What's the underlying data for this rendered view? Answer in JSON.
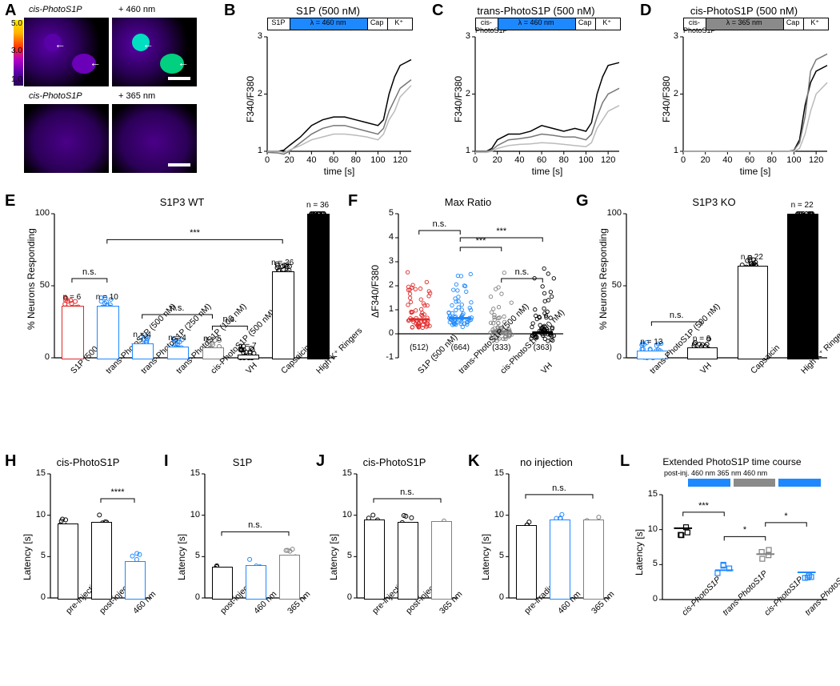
{
  "panelA": {
    "label": "A",
    "images": {
      "top_left_title": "cis-PhotoS1P",
      "top_right_title": "+ 460 nm",
      "bottom_left_title": "cis-PhotoS1P",
      "bottom_right_title": "+ 365 nm"
    },
    "colorbar": {
      "ticks": [
        "5.0",
        "3.0",
        "1.0"
      ]
    }
  },
  "panelB": {
    "label": "B",
    "title": "S1P (500 nM)",
    "chart": {
      "type": "line",
      "xlabel": "time [s]",
      "ylabel": "F340/F380",
      "xlim": [
        0,
        130
      ],
      "xticks": [
        0,
        20,
        40,
        60,
        80,
        100,
        120
      ],
      "ylim": [
        1,
        3
      ],
      "yticks": [
        1,
        2,
        3
      ],
      "series": [
        {
          "color": "#000000",
          "width": 1.5,
          "x": [
            0,
            10,
            15,
            20,
            30,
            40,
            50,
            60,
            70,
            80,
            90,
            100,
            105,
            110,
            115,
            120,
            130
          ],
          "y": [
            1.0,
            1.0,
            1.02,
            1.1,
            1.25,
            1.45,
            1.55,
            1.6,
            1.6,
            1.55,
            1.5,
            1.45,
            1.55,
            2.0,
            2.3,
            2.5,
            2.6
          ]
        },
        {
          "color": "#777777",
          "width": 1.5,
          "x": [
            0,
            10,
            15,
            20,
            30,
            40,
            50,
            60,
            70,
            80,
            90,
            100,
            105,
            110,
            115,
            120,
            130
          ],
          "y": [
            0.98,
            0.97,
            0.95,
            1.0,
            1.15,
            1.3,
            1.4,
            1.45,
            1.45,
            1.4,
            1.35,
            1.3,
            1.4,
            1.7,
            1.9,
            2.1,
            2.25
          ]
        },
        {
          "color": "#bbbbbb",
          "width": 1.5,
          "x": [
            0,
            10,
            15,
            20,
            30,
            40,
            50,
            60,
            70,
            80,
            90,
            100,
            105,
            110,
            115,
            120,
            130
          ],
          "y": [
            1.0,
            1.0,
            0.98,
            1.02,
            1.1,
            1.2,
            1.25,
            1.3,
            1.3,
            1.28,
            1.25,
            1.2,
            1.3,
            1.55,
            1.7,
            1.95,
            2.15
          ]
        }
      ],
      "protocol": [
        {
          "start": 0,
          "end": 20,
          "label": "S1P",
          "fill": "#ffffff"
        },
        {
          "start": 20,
          "end": 90,
          "label": "λ = 460 nm",
          "fill": "#1e88ff"
        },
        {
          "start": 90,
          "end": 108,
          "label": "Cap",
          "fill": "#ffffff"
        },
        {
          "start": 108,
          "end": 130,
          "label": "K⁺",
          "fill": "#ffffff"
        }
      ]
    }
  },
  "panelC": {
    "label": "C",
    "title": "trans-PhotoS1P (500 nM)",
    "chart": {
      "type": "line",
      "xlabel": "time [s]",
      "ylabel": "F340/F380",
      "xlim": [
        0,
        130
      ],
      "xticks": [
        0,
        20,
        40,
        60,
        80,
        100,
        120
      ],
      "ylim": [
        1,
        3
      ],
      "yticks": [
        1,
        2,
        3
      ],
      "series": [
        {
          "color": "#000000",
          "width": 1.5,
          "x": [
            0,
            10,
            15,
            20,
            30,
            40,
            50,
            60,
            70,
            80,
            90,
            100,
            105,
            110,
            115,
            120,
            130
          ],
          "y": [
            1.0,
            1.0,
            1.05,
            1.2,
            1.3,
            1.3,
            1.35,
            1.45,
            1.4,
            1.35,
            1.4,
            1.35,
            1.5,
            2.0,
            2.3,
            2.5,
            2.55
          ]
        },
        {
          "color": "#777777",
          "width": 1.5,
          "x": [
            0,
            10,
            15,
            20,
            30,
            40,
            50,
            60,
            70,
            80,
            90,
            100,
            105,
            110,
            115,
            120,
            130
          ],
          "y": [
            1.0,
            1.0,
            1.02,
            1.1,
            1.2,
            1.22,
            1.25,
            1.3,
            1.28,
            1.25,
            1.25,
            1.2,
            1.3,
            1.6,
            1.85,
            2.0,
            2.1
          ]
        },
        {
          "color": "#bbbbbb",
          "width": 1.5,
          "x": [
            0,
            10,
            15,
            20,
            30,
            40,
            50,
            60,
            70,
            80,
            90,
            100,
            105,
            110,
            115,
            120,
            130
          ],
          "y": [
            0.98,
            0.98,
            1.0,
            1.05,
            1.1,
            1.12,
            1.13,
            1.15,
            1.14,
            1.12,
            1.1,
            1.08,
            1.15,
            1.4,
            1.55,
            1.7,
            1.8
          ]
        }
      ],
      "protocol": [
        {
          "start": 0,
          "end": 20,
          "label": "cis-PhotoS1P",
          "fill": "#ffffff"
        },
        {
          "start": 20,
          "end": 90,
          "label": "λ = 460 nm",
          "fill": "#1e88ff"
        },
        {
          "start": 90,
          "end": 108,
          "label": "Cap",
          "fill": "#ffffff"
        },
        {
          "start": 108,
          "end": 130,
          "label": "K⁺",
          "fill": "#ffffff"
        }
      ]
    }
  },
  "panelD": {
    "label": "D",
    "title": "cis-PhotoS1P (500 nM)",
    "chart": {
      "type": "line",
      "xlabel": "time [s]",
      "ylabel": "F340/F380",
      "xlim": [
        0,
        130
      ],
      "xticks": [
        0,
        20,
        40,
        60,
        80,
        100,
        120
      ],
      "ylim": [
        1,
        3
      ],
      "yticks": [
        1,
        2,
        3
      ],
      "series": [
        {
          "color": "#000000",
          "width": 1.5,
          "x": [
            0,
            20,
            40,
            60,
            80,
            95,
            100,
            105,
            110,
            115,
            120,
            130
          ],
          "y": [
            1.0,
            1.0,
            1.0,
            1.0,
            1.0,
            1.0,
            1.02,
            1.2,
            1.8,
            2.2,
            2.4,
            2.5
          ]
        },
        {
          "color": "#777777",
          "width": 1.5,
          "x": [
            0,
            20,
            40,
            60,
            80,
            95,
            100,
            105,
            110,
            115,
            120,
            130
          ],
          "y": [
            1.0,
            1.0,
            1.0,
            1.0,
            1.0,
            1.0,
            1.02,
            1.15,
            1.6,
            2.4,
            2.6,
            2.7
          ]
        },
        {
          "color": "#bbbbbb",
          "width": 1.5,
          "x": [
            0,
            20,
            40,
            60,
            80,
            95,
            100,
            105,
            110,
            115,
            120,
            130
          ],
          "y": [
            1.0,
            1.0,
            1.0,
            1.0,
            1.0,
            1.0,
            1.0,
            1.05,
            1.3,
            1.7,
            2.0,
            2.2
          ]
        }
      ],
      "protocol": [
        {
          "start": 0,
          "end": 20,
          "label": "cis-PhotoS1P",
          "fill": "#ffffff"
        },
        {
          "start": 20,
          "end": 90,
          "label": "λ = 365 nm",
          "fill": "#8a8a8a"
        },
        {
          "start": 90,
          "end": 108,
          "label": "Cap",
          "fill": "#ffffff"
        },
        {
          "start": 108,
          "end": 130,
          "label": "K⁺",
          "fill": "#ffffff"
        }
      ]
    }
  },
  "panelE": {
    "label": "E",
    "title": "S1P3 WT",
    "chart": {
      "type": "bar",
      "ylabel": "% Neurons Responding",
      "ylim": [
        0,
        100
      ],
      "yticks": [
        0,
        50,
        100
      ],
      "categories": [
        "S1P (500 nM)",
        "trans-PhotoS1P (500 nM)",
        "trans-PhotoS1P (250 nM)",
        "trans-PhotoS1P (100 nM)",
        "cis-PhotoS1P (500 nM)",
        "VH",
        "Capsaicin",
        "High K⁺ Ringers"
      ],
      "values": [
        36,
        36,
        10,
        8,
        7,
        2,
        60,
        100
      ],
      "n_labels": [
        "n = 6",
        "n = 10",
        "n = 4",
        "n = 4",
        "n = 5",
        "n = 7",
        "n = 36",
        "n = 36"
      ],
      "colors": [
        "#e02828",
        "#1e88ff",
        "#1e88ff",
        "#1e88ff",
        "#808080",
        "#000000",
        "#000000",
        "#000000"
      ],
      "fills": [
        "#ffffff",
        "#ffffff",
        "#ffffff",
        "#ffffff",
        "#ffffff",
        "#ffffff",
        "#ffffff",
        "#000000"
      ],
      "significance": [
        {
          "from": 0,
          "to": 1,
          "label": "n.s.",
          "y": 55
        },
        {
          "from": 1,
          "to": 6,
          "label": "***",
          "y": 82,
          "span_mid": true
        },
        {
          "from": 2,
          "to": 4,
          "label": "n.s.",
          "y": 30
        },
        {
          "from": 4,
          "to": 5,
          "label": "n.s.",
          "y": 22
        }
      ]
    }
  },
  "panelF": {
    "label": "F",
    "title": "Max Ratio",
    "chart": {
      "type": "scatter",
      "ylabel": "ΔF340/F380",
      "ylim": [
        -1,
        5
      ],
      "yticks": [
        -1,
        0,
        1,
        2,
        3,
        4,
        5
      ],
      "categories": [
        "S1P (500 nM)",
        "trans-PhotoS1P (500 nM)",
        "cis-PhotoS1P (500 nM)",
        "VH"
      ],
      "counts": [
        "(512)",
        "(664)",
        "(333)",
        "(363)"
      ],
      "colors": [
        "#e02828",
        "#1e88ff",
        "#808080",
        "#000000"
      ],
      "medians": [
        0.6,
        0.65,
        0.1,
        0.05
      ],
      "significance": [
        {
          "from": 0,
          "to": 1,
          "label": "n.s.",
          "y": 4.3
        },
        {
          "from": 1,
          "to": 2,
          "label": "***",
          "y": 3.6
        },
        {
          "from": 1,
          "to": 3,
          "label": "***",
          "y": 4.0
        },
        {
          "from": 2,
          "to": 3,
          "label": "n.s.",
          "y": 2.3
        }
      ]
    }
  },
  "panelG": {
    "label": "G",
    "title": "S1P3 KO",
    "chart": {
      "type": "bar",
      "ylabel": "% Neurons Responding",
      "ylim": [
        0,
        100
      ],
      "yticks": [
        0,
        50,
        100
      ],
      "categories": [
        "trans-PhotoS1P (500 nM)",
        "VH",
        "Capsaicin",
        "High K⁺ Ringers"
      ],
      "values": [
        5,
        7,
        64,
        100
      ],
      "n_labels": [
        "n = 13",
        "n = 9",
        "n = 22",
        "n = 22"
      ],
      "colors": [
        "#1e88ff",
        "#000000",
        "#000000",
        "#000000"
      ],
      "fills": [
        "#ffffff",
        "#ffffff",
        "#ffffff",
        "#000000"
      ],
      "significance": [
        {
          "from": 0,
          "to": 1,
          "label": "n.s.",
          "y": 25
        }
      ]
    }
  },
  "panelH": {
    "label": "H",
    "title": "cis-PhotoS1P",
    "chart": {
      "type": "bar",
      "ylabel": "Latency [s]",
      "ylim": [
        0,
        15
      ],
      "yticks": [
        0,
        5,
        10,
        15
      ],
      "categories": [
        "pre-injection",
        "post-injection",
        "460 nm"
      ],
      "values": [
        9,
        9.2,
        4.5
      ],
      "colors": [
        "#000000",
        "#000000",
        "#1e88ff"
      ],
      "significance": [
        {
          "from": 1,
          "to": 2,
          "label": "****",
          "y": 12
        }
      ]
    }
  },
  "panelI": {
    "label": "I",
    "title": "S1P",
    "chart": {
      "type": "bar",
      "ylabel": "Latency [s]",
      "ylim": [
        0,
        15
      ],
      "yticks": [
        0,
        5,
        10,
        15
      ],
      "categories": [
        "post-injection",
        "460 nm",
        "365 nm"
      ],
      "values": [
        3.8,
        4.0,
        5.2
      ],
      "colors": [
        "#000000",
        "#1e88ff",
        "#808080"
      ],
      "significance": [
        {
          "from": 0,
          "to": 2,
          "label": "n.s.",
          "y": 8
        }
      ]
    }
  },
  "panelJ": {
    "label": "J",
    "title": "cis-PhotoS1P",
    "chart": {
      "type": "bar",
      "ylabel": "Latency [s]",
      "ylim": [
        0,
        15
      ],
      "yticks": [
        0,
        5,
        10,
        15
      ],
      "categories": [
        "pre-injection",
        "post-injection",
        "365 nm"
      ],
      "values": [
        9.5,
        9.2,
        9.3
      ],
      "colors": [
        "#000000",
        "#000000",
        "#808080"
      ],
      "significance": [
        {
          "from": 0,
          "to": 2,
          "label": "n.s.",
          "y": 12
        }
      ]
    }
  },
  "panelK": {
    "label": "K",
    "title": "no injection",
    "chart": {
      "type": "bar",
      "ylabel": "Latency [s]",
      "ylim": [
        0,
        15
      ],
      "yticks": [
        0,
        5,
        10,
        15
      ],
      "categories": [
        "pre-irradiation",
        "460 nm",
        "365 nm"
      ],
      "values": [
        8.8,
        9.5,
        9.5
      ],
      "colors": [
        "#000000",
        "#1e88ff",
        "#808080"
      ],
      "significance": [
        {
          "from": 0,
          "to": 2,
          "label": "n.s.",
          "y": 12.5
        }
      ]
    }
  },
  "panelL": {
    "label": "L",
    "title": "Extended PhotoS1P time course",
    "protocol_text": "post-inj.   460 nm     365 nm     460 nm",
    "protocol_segments": [
      {
        "fill": "#1e88ff"
      },
      {
        "fill": "#8a8a8a"
      },
      {
        "fill": "#1e88ff"
      }
    ],
    "chart": {
      "type": "scatter-line",
      "ylabel": "Latency [s]",
      "ylim": [
        0,
        15
      ],
      "yticks": [
        0,
        5,
        10,
        15
      ],
      "categories": [
        "cis-PhotoS1P",
        "trans-PhotoS1P",
        "cis-PhotoS1P",
        "trans-PhotoS1P"
      ],
      "values": [
        10.2,
        4.2,
        6.5,
        3.9
      ],
      "colors": [
        "#000000",
        "#1e88ff",
        "#808080",
        "#1e88ff"
      ],
      "significance": [
        {
          "from": 0,
          "to": 1,
          "label": "***",
          "y": 12.5
        },
        {
          "from": 1,
          "to": 2,
          "label": "*",
          "y": 9
        },
        {
          "from": 2,
          "to": 3,
          "label": "*",
          "y": 11
        }
      ]
    }
  }
}
